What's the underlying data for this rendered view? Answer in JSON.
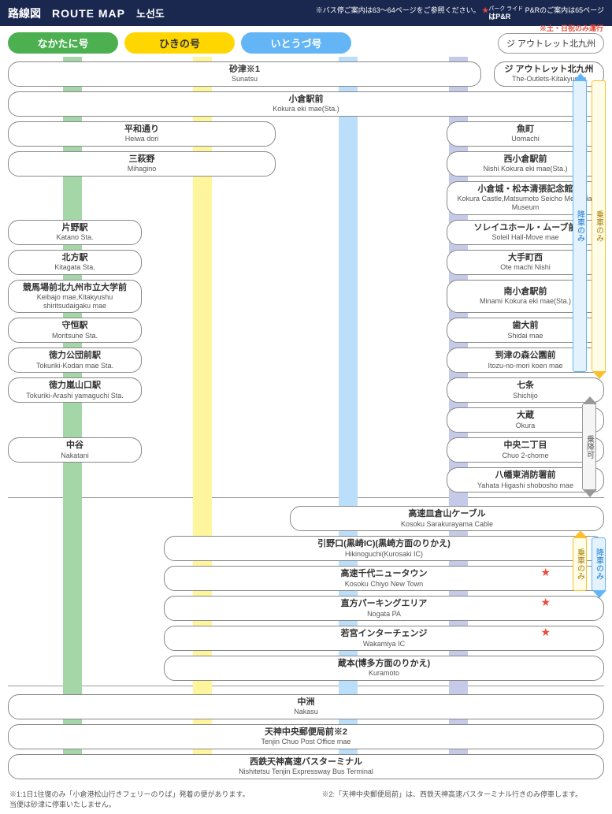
{
  "header": {
    "title_jp": "路線図",
    "title_en": "ROUTE MAP",
    "title_kr": "노선도",
    "note_prefix": "※バス停ご案内は63～64ページをご参照ください。",
    "note_star": "★",
    "note_pr_ruby": "パーク ライド",
    "note_pr": "はP&R",
    "note_suffix": " P&Rのご案内は65ページ"
  },
  "routes": {
    "nakatani": "なかたに号",
    "hikino": "ひきの号",
    "itozu": "いとうづ号",
    "outlet": "ジ アウトレット北九州",
    "outlet_note": "※土・日祝のみ運行"
  },
  "colors": {
    "header_bg": "#1a2850",
    "nakatani": "#4caf50",
    "nakatani_lane": "#a5d6a7",
    "hikino": "#ffd600",
    "hikino_lane": "#fff59d",
    "itozu": "#64b5f6",
    "itozu_lane": "#bbdefb",
    "outlet_lane": "#c5cae9",
    "star": "#e74c3c",
    "border": "#888"
  },
  "section1": [
    {
      "type": "row",
      "left": {
        "jp": "砂津※1",
        "en": "Sunatsu",
        "w": "wide"
      },
      "right": null,
      "outlet": {
        "jp": "ジ アウトレット北九州",
        "en": "The-Outlets-Kitakyushu"
      }
    },
    {
      "type": "row",
      "left": {
        "jp": "小倉駅前",
        "en": "Kokura eki mae(Sta.)",
        "w": "wide"
      }
    },
    {
      "type": "row",
      "left": {
        "jp": "平和通り",
        "en": "Heiwa dori",
        "w": "left"
      },
      "right": {
        "jp": "魚町",
        "en": "Uomachi"
      }
    },
    {
      "type": "row",
      "left": {
        "jp": "三萩野",
        "en": "Mihagino",
        "w": "left"
      },
      "right": {
        "jp": "西小倉駅前",
        "en": "Nishi Kokura eki mae(Sta.)"
      }
    },
    {
      "type": "row",
      "right": {
        "jp": "小倉城・松本清張記念館",
        "en": "Kokura Castle,Matsumoto Seicho Memorial Museum"
      }
    },
    {
      "type": "row",
      "left": {
        "jp": "片野駅",
        "en": "Katano Sta.",
        "w": "narrow"
      },
      "right": {
        "jp": "ソレイユホール・ムーブ前",
        "en": "Soleil Hall-Move mae"
      }
    },
    {
      "type": "row",
      "left": {
        "jp": "北方駅",
        "en": "Kitagata Sta.",
        "w": "narrow"
      },
      "right": {
        "jp": "大手町西",
        "en": "Ote machi Nishi"
      }
    },
    {
      "type": "row",
      "left": {
        "jp": "競馬場前北九州市立大学前",
        "en": "Keibajo mae,Kitakyushu shiritsudaigaku mae",
        "w": "narrow"
      },
      "right": {
        "jp": "南小倉駅前",
        "en": "Minami Kokura eki mae(Sta.)"
      }
    },
    {
      "type": "row",
      "left": {
        "jp": "守恒駅",
        "en": "Moritsune Sta.",
        "w": "narrow"
      },
      "right": {
        "jp": "歯大前",
        "en": "Shidai mae"
      }
    },
    {
      "type": "row",
      "left": {
        "jp": "徳力公団前駅",
        "en": "Tokuriki-Kodan mae Sta.",
        "w": "narrow"
      },
      "right": {
        "jp": "到津の森公園前",
        "en": "Itozu-no-mori koen mae"
      }
    },
    {
      "type": "row",
      "left": {
        "jp": "徳力嵐山口駅",
        "en": "Tokuriki-Arashi yamaguchi Sta.",
        "w": "narrow"
      },
      "right": {
        "jp": "七条",
        "en": "Shichijo"
      }
    },
    {
      "type": "row",
      "right": {
        "jp": "大蔵",
        "en": "Okura"
      }
    },
    {
      "type": "row",
      "left": {
        "jp": "中谷",
        "en": "Nakatani",
        "w": "narrow"
      },
      "right": {
        "jp": "中央二丁目",
        "en": "Chuo 2-chome"
      }
    },
    {
      "type": "row",
      "right": {
        "jp": "八幡東消防署前",
        "en": "Yahata Higashi shobosho mae"
      }
    }
  ],
  "section2": [
    {
      "jp": "高速皿倉山ケーブル",
      "en": "Kosoku Sarakurayama Cable",
      "offset": "mid"
    },
    {
      "jp": "引野口(黒崎IC)(黒崎方面のりかえ)",
      "en": "Hikinoguchi(Kurosaki IC)",
      "offset": "hik"
    },
    {
      "jp": "高速千代ニュータウン",
      "en": "Kosoku Chiyo New Town",
      "offset": "hik",
      "star": true
    },
    {
      "jp": "直方パーキングエリア",
      "en": "Nogata PA",
      "offset": "hik",
      "star": true
    },
    {
      "jp": "若宮インターチェンジ",
      "en": "Wakamiya IC",
      "offset": "hik",
      "star": true
    },
    {
      "jp": "蔵本(博多方面のりかえ)",
      "en": "Kuramoto",
      "offset": "hik"
    }
  ],
  "section3": [
    {
      "jp": "中洲",
      "en": "Nakasu"
    },
    {
      "jp": "天神中央郵便局前※2",
      "en": "Tenjin Chuo Post Office mae"
    },
    {
      "jp": "西鉄天神高速バスターミナル",
      "en": "Nishitetsu Tenjin Expressway Bus Terminal"
    }
  ],
  "arrows": {
    "sec1_left": "降車のみ",
    "sec1_right": "乗車のみ",
    "sec2": "乗降可",
    "sec3_left": "乗車のみ",
    "sec3_right": "降車のみ"
  },
  "footnotes": {
    "fn1a": "※1:1日1往復のみ「小倉港松山行きフェリーのりば」発着の便があります。",
    "fn1b": "当便は砂津に停車いたしません。",
    "fn2": "※2:「天神中央郵便局前」は、西鉄天神高速バスターミナル行きのみ停車します。"
  }
}
